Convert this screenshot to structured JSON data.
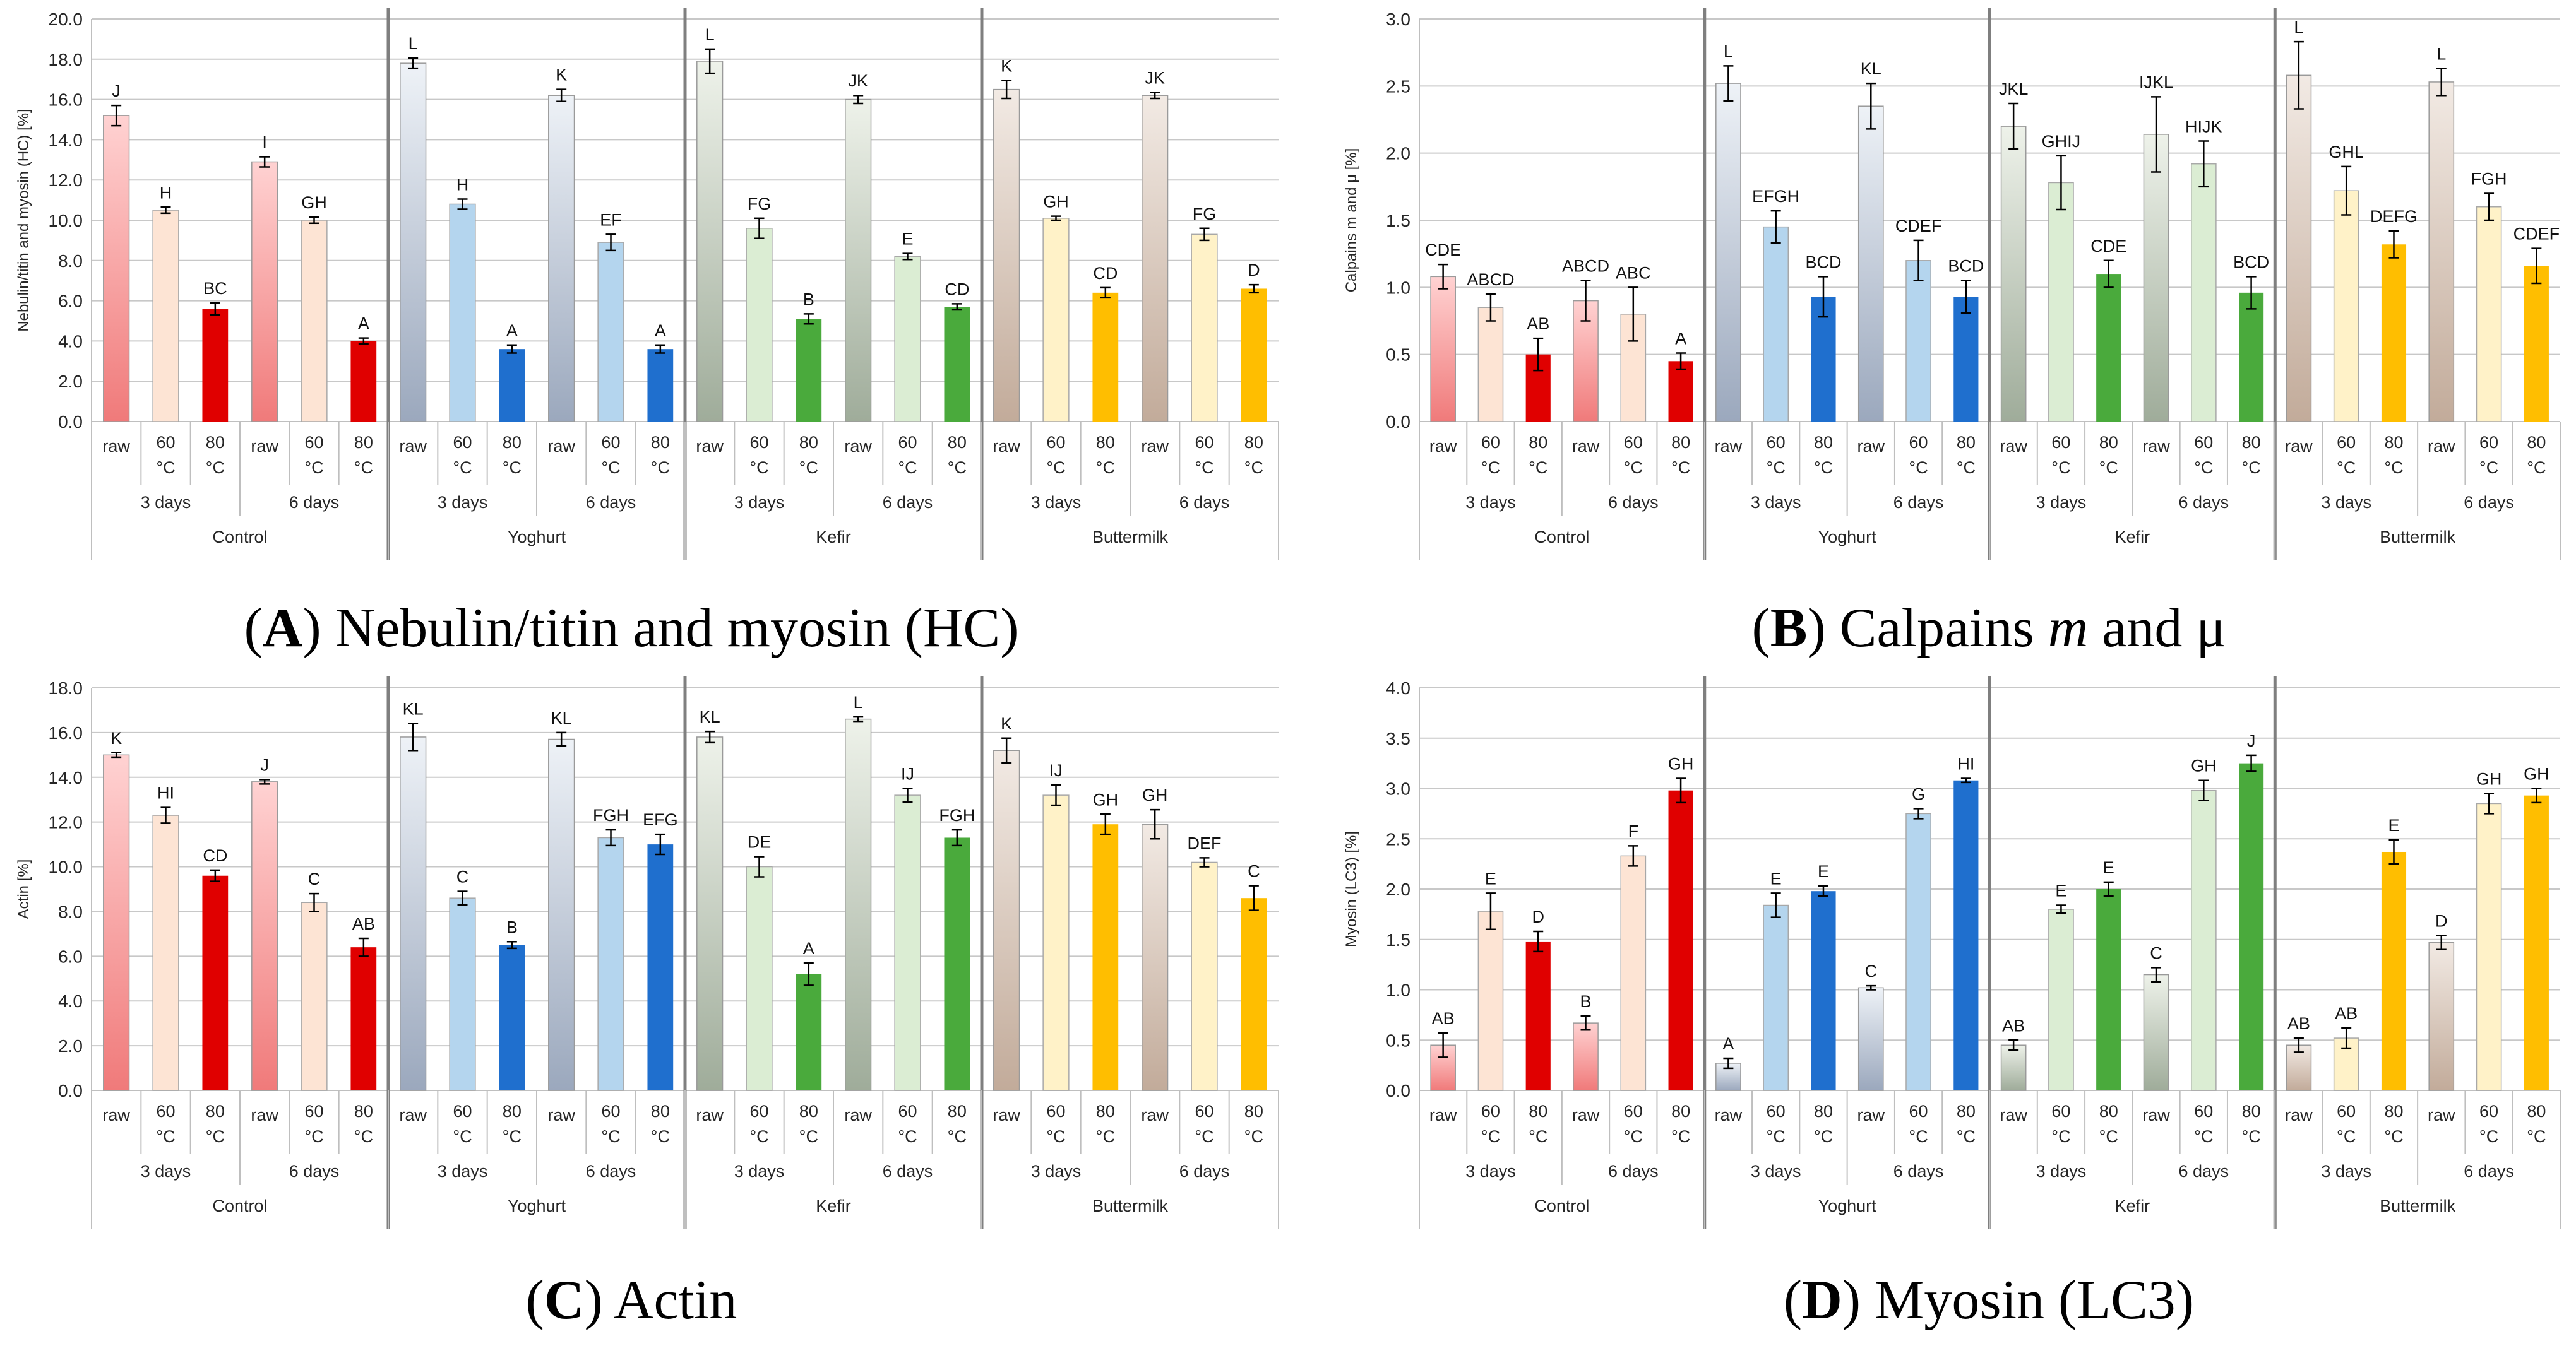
{
  "colors": {
    "control": {
      "raw_top": "#ffd2d2",
      "raw_bottom": "#f07a7a",
      "c60": "#fde4d4",
      "c80": "#e00000"
    },
    "yoghurt": {
      "raw_top": "#eef2f7",
      "raw_bottom": "#9ba8bd",
      "c60": "#b4d5ee",
      "c80": "#1f6fce"
    },
    "kefir": {
      "raw_top": "#eef2ea",
      "raw_bottom": "#9fac9a",
      "c60": "#dbedd3",
      "c80": "#4aaa3c"
    },
    "buttermilk": {
      "raw_top": "#f2eae4",
      "raw_bottom": "#c2ab9a",
      "c60": "#fff2c8",
      "c80": "#ffbe00"
    }
  },
  "captions": [
    {
      "letter": "A",
      "text": ") Nebulin/titin and myosin (HC)"
    },
    {
      "letter": "B",
      "text": ") Calpains ",
      "italic": "m",
      "tail": " and μ"
    },
    {
      "letter": "C",
      "text": ") Actin"
    },
    {
      "letter": "D",
      "text": ") Myosin (LC3)"
    }
  ],
  "chart_data": [
    {
      "type": "bar",
      "ylabel": "Nebulin/titin and myosin (HC) [%]",
      "ylim": [
        0,
        20
      ],
      "yticks": [
        "0.0",
        "2.0",
        "4.0",
        "6.0",
        "8.0",
        "10.0",
        "12.0",
        "14.0",
        "16.0",
        "18.0",
        "20.0"
      ],
      "grid": true,
      "groups": [
        "Control",
        "Yoghurt",
        "Kefir",
        "Buttermilk"
      ],
      "days": [
        "3 days",
        "6 days"
      ],
      "treatments": [
        "raw",
        "60 °C",
        "80 °C"
      ],
      "series": [
        {
          "group": "Control",
          "values": [
            15.2,
            10.5,
            5.6,
            12.9,
            10.0,
            4.0
          ],
          "errors": [
            0.5,
            0.15,
            0.3,
            0.25,
            0.15,
            0.15
          ],
          "labels": [
            "J",
            "H",
            "BC",
            "I",
            "GH",
            "A"
          ]
        },
        {
          "group": "Yoghurt",
          "values": [
            17.8,
            10.8,
            3.6,
            16.2,
            8.9,
            3.6
          ],
          "errors": [
            0.25,
            0.25,
            0.2,
            0.3,
            0.4,
            0.2
          ],
          "labels": [
            "L",
            "H",
            "A",
            "K",
            "EF",
            "A"
          ]
        },
        {
          "group": "Kefir",
          "values": [
            17.9,
            9.6,
            5.1,
            16.0,
            8.2,
            5.7
          ],
          "errors": [
            0.6,
            0.5,
            0.25,
            0.2,
            0.15,
            0.15
          ],
          "labels": [
            "L",
            "FG",
            "B",
            "JK",
            "E",
            "CD"
          ]
        },
        {
          "group": "Buttermilk",
          "values": [
            16.5,
            10.1,
            6.4,
            16.2,
            9.3,
            6.6
          ],
          "errors": [
            0.45,
            0.1,
            0.25,
            0.15,
            0.3,
            0.2
          ],
          "labels": [
            "K",
            "GH",
            "CD",
            "JK",
            "FG",
            "D"
          ]
        }
      ]
    },
    {
      "type": "bar",
      "ylabel": "Calpains m and μ [%]",
      "ylim": [
        0,
        3
      ],
      "yticks": [
        "0.0",
        "0.5",
        "1.0",
        "1.5",
        "2.0",
        "2.5",
        "3.0"
      ],
      "grid": true,
      "groups": [
        "Control",
        "Yoghurt",
        "Kefir",
        "Buttermilk"
      ],
      "days": [
        "3 days",
        "6 days"
      ],
      "treatments": [
        "raw",
        "60 °C",
        "80 °C"
      ],
      "series": [
        {
          "group": "Control",
          "values": [
            1.08,
            0.85,
            0.5,
            0.9,
            0.8,
            0.45
          ],
          "errors": [
            0.09,
            0.1,
            0.12,
            0.15,
            0.2,
            0.06
          ],
          "labels": [
            "CDE",
            "ABCD",
            "AB",
            "ABCD",
            "ABC",
            "A"
          ]
        },
        {
          "group": "Yoghurt",
          "values": [
            2.52,
            1.45,
            0.93,
            2.35,
            1.2,
            0.93
          ],
          "errors": [
            0.13,
            0.12,
            0.15,
            0.17,
            0.15,
            0.12
          ],
          "labels": [
            "L",
            "EFGH",
            "BCD",
            "KL",
            "CDEF",
            "BCD"
          ]
        },
        {
          "group": "Kefir",
          "values": [
            2.2,
            1.78,
            1.1,
            2.14,
            1.92,
            0.96
          ],
          "errors": [
            0.17,
            0.2,
            0.1,
            0.28,
            0.17,
            0.12
          ],
          "labels": [
            "JKL",
            "GHIJ",
            "CDE",
            "IJKL",
            "HIJK",
            "BCD"
          ]
        },
        {
          "group": "Buttermilk",
          "values": [
            2.58,
            1.72,
            1.32,
            2.53,
            1.6,
            1.16
          ],
          "errors": [
            0.25,
            0.18,
            0.1,
            0.1,
            0.1,
            0.13
          ],
          "labels": [
            "L",
            "GHL",
            "DEFG",
            "L",
            "FGH",
            "CDEF"
          ]
        }
      ]
    },
    {
      "type": "bar",
      "ylabel": "Actin [%]",
      "ylim": [
        0,
        18
      ],
      "yticks": [
        "0.0",
        "2.0",
        "4.0",
        "6.0",
        "8.0",
        "10.0",
        "12.0",
        "14.0",
        "16.0",
        "18.0"
      ],
      "grid": true,
      "groups": [
        "Control",
        "Yoghurt",
        "Kefir",
        "Buttermilk"
      ],
      "days": [
        "3 days",
        "6 days"
      ],
      "treatments": [
        "raw",
        "60 °C",
        "80 °C"
      ],
      "series": [
        {
          "group": "Control",
          "values": [
            15.0,
            12.3,
            9.6,
            13.8,
            8.4,
            6.4
          ],
          "errors": [
            0.1,
            0.35,
            0.25,
            0.1,
            0.4,
            0.4
          ],
          "labels": [
            "K",
            "HI",
            "CD",
            "J",
            "C",
            "AB"
          ]
        },
        {
          "group": "Yoghurt",
          "values": [
            15.8,
            8.6,
            6.5,
            15.7,
            11.3,
            11.0
          ],
          "errors": [
            0.6,
            0.3,
            0.15,
            0.3,
            0.35,
            0.45
          ],
          "labels": [
            "KL",
            "C",
            "B",
            "KL",
            "FGH",
            "EFG"
          ]
        },
        {
          "group": "Kefir",
          "values": [
            15.8,
            10.0,
            5.2,
            16.6,
            13.2,
            11.3
          ],
          "errors": [
            0.25,
            0.45,
            0.5,
            0.1,
            0.3,
            0.35
          ],
          "labels": [
            "KL",
            "DE",
            "A",
            "L",
            "IJ",
            "FGH"
          ]
        },
        {
          "group": "Buttermilk",
          "values": [
            15.2,
            13.2,
            11.9,
            11.9,
            10.2,
            8.6
          ],
          "errors": [
            0.55,
            0.45,
            0.45,
            0.65,
            0.2,
            0.55
          ],
          "labels": [
            "K",
            "IJ",
            "GH",
            "GH",
            "DEF",
            "C"
          ]
        }
      ]
    },
    {
      "type": "bar",
      "ylabel": "Myosin (LC3) [%]",
      "ylim": [
        0,
        4
      ],
      "yticks": [
        "0.0",
        "0.5",
        "1.0",
        "1.5",
        "2.0",
        "2.5",
        "3.0",
        "3.5",
        "4.0"
      ],
      "grid": true,
      "groups": [
        "Control",
        "Yoghurt",
        "Kefir",
        "Buttermilk"
      ],
      "days": [
        "3 days",
        "6 days"
      ],
      "treatments": [
        "raw",
        "60 °C",
        "80 °C"
      ],
      "series": [
        {
          "group": "Control",
          "values": [
            0.45,
            1.78,
            1.48,
            0.67,
            2.33,
            2.98
          ],
          "errors": [
            0.12,
            0.18,
            0.1,
            0.07,
            0.1,
            0.12
          ],
          "labels": [
            "AB",
            "E",
            "D",
            "B",
            "F",
            "GH"
          ]
        },
        {
          "group": "Yoghurt",
          "values": [
            0.27,
            1.84,
            1.98,
            1.02,
            2.75,
            3.08
          ],
          "errors": [
            0.05,
            0.12,
            0.05,
            0.02,
            0.05,
            0.02
          ],
          "labels": [
            "A",
            "E",
            "E",
            "C",
            "G",
            "HI"
          ]
        },
        {
          "group": "Kefir",
          "values": [
            0.45,
            1.8,
            2.0,
            1.15,
            2.98,
            3.25
          ],
          "errors": [
            0.05,
            0.04,
            0.07,
            0.07,
            0.1,
            0.08
          ],
          "labels": [
            "AB",
            "E",
            "E",
            "C",
            "GH",
            "J"
          ]
        },
        {
          "group": "Buttermilk",
          "values": [
            0.45,
            0.52,
            2.37,
            1.47,
            2.85,
            2.93
          ],
          "errors": [
            0.07,
            0.1,
            0.12,
            0.07,
            0.1,
            0.07
          ],
          "labels": [
            "AB",
            "AB",
            "E",
            "D",
            "GH",
            "GH"
          ]
        }
      ]
    }
  ]
}
